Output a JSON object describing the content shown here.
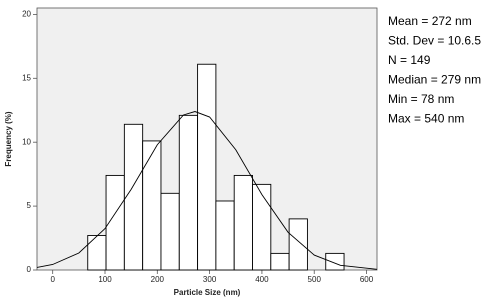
{
  "chart_data": {
    "type": "histogram",
    "x_label": "Particle Size (nm)",
    "y_label": "Frequency (%)",
    "bins": [
      67,
      102,
      137,
      172,
      207,
      242,
      277,
      312,
      347,
      382,
      417,
      452,
      487,
      522,
      557
    ],
    "values": [
      2.7,
      7.4,
      11.4,
      10.1,
      6.0,
      12.1,
      16.1,
      5.4,
      7.4,
      6.7,
      1.3,
      4.0,
      0,
      1.3
    ],
    "color": "#ffffff",
    "edge_color": "#000000",
    "curve": {
      "x": [
        -30,
        0,
        50,
        100,
        150,
        200,
        250,
        272,
        300,
        350,
        400,
        450,
        500,
        550,
        620
      ],
      "y": [
        0.2,
        0.43,
        1.33,
        3.24,
        6.31,
        9.8,
        12.13,
        12.4,
        11.97,
        9.41,
        5.9,
        2.95,
        1.17,
        0.37,
        0.05
      ]
    },
    "xlim": [
      -30,
      620
    ],
    "xticks": [
      0,
      100,
      200,
      300,
      400,
      500,
      600
    ],
    "ylim": [
      0,
      20.5
    ],
    "yticks": [
      0,
      5,
      10,
      15,
      20
    ],
    "stats": [
      "Mean = 272 nm",
      "Std. Dev = 10.6.5",
      "N = 149",
      "Median = 279 nm",
      "Min = 78 nm",
      "Max = 540 nm"
    ]
  }
}
